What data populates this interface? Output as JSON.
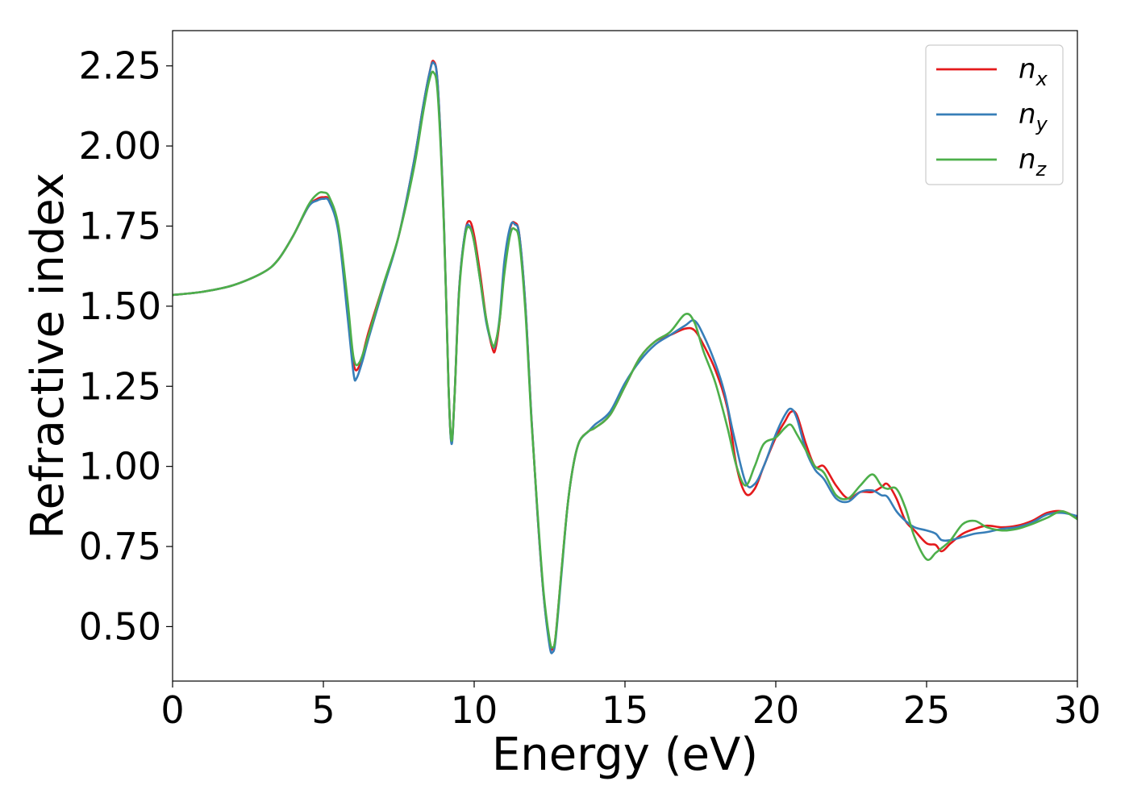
{
  "chart_data": {
    "type": "line",
    "title": "",
    "xlabel": "Energy (eV)",
    "ylabel": "Refractive index",
    "xlim": [
      0,
      30
    ],
    "ylim": [
      0.33,
      2.36
    ],
    "xticks": [
      0,
      5,
      10,
      15,
      20,
      25,
      30
    ],
    "xtick_labels": [
      "0",
      "5",
      "10",
      "15",
      "20",
      "25",
      "30"
    ],
    "yticks": [
      0.5,
      0.75,
      1.0,
      1.25,
      1.5,
      1.75,
      2.0,
      2.25
    ],
    "ytick_labels": [
      "0.50",
      "0.75",
      "1.00",
      "1.25",
      "1.50",
      "1.75",
      "2.00",
      "2.25"
    ],
    "grid": false,
    "legend_position": "top-right",
    "series": [
      {
        "name": "n_x",
        "base": "n",
        "sub": "x",
        "color": "#e41a1c",
        "x": [
          0,
          1,
          2,
          3,
          3.5,
          4,
          4.5,
          4.8,
          5.0,
          5.2,
          5.5,
          5.8,
          6.0,
          6.2,
          6.5,
          7.0,
          7.5,
          8.0,
          8.3,
          8.5,
          8.65,
          8.8,
          9.0,
          9.15,
          9.25,
          9.35,
          9.5,
          9.7,
          9.85,
          10.0,
          10.2,
          10.4,
          10.6,
          10.7,
          10.85,
          11.0,
          11.2,
          11.35,
          11.5,
          11.7,
          11.9,
          12.1,
          12.3,
          12.5,
          12.6,
          12.7,
          12.9,
          13.1,
          13.3,
          13.5,
          13.8,
          14.0,
          14.5,
          15.0,
          15.5,
          16.0,
          16.5,
          17.0,
          17.3,
          17.6,
          18.0,
          18.4,
          18.7,
          19.0,
          19.3,
          19.6,
          20.0,
          20.3,
          20.5,
          20.7,
          21.0,
          21.3,
          21.6,
          22.0,
          22.4,
          22.8,
          23.2,
          23.5,
          23.7,
          24.0,
          24.3,
          24.6,
          25.0,
          25.3,
          25.5,
          25.8,
          26.2,
          26.6,
          27.0,
          27.5,
          28.0,
          28.5,
          29.0,
          29.5,
          30.0
        ],
        "y": [
          1.535,
          1.545,
          1.565,
          1.605,
          1.645,
          1.72,
          1.81,
          1.835,
          1.84,
          1.83,
          1.74,
          1.5,
          1.32,
          1.315,
          1.42,
          1.57,
          1.72,
          1.95,
          2.12,
          2.22,
          2.265,
          2.18,
          1.75,
          1.25,
          1.075,
          1.22,
          1.55,
          1.73,
          1.765,
          1.72,
          1.6,
          1.46,
          1.37,
          1.365,
          1.46,
          1.63,
          1.745,
          1.76,
          1.72,
          1.5,
          1.15,
          0.85,
          0.6,
          0.45,
          0.43,
          0.47,
          0.68,
          0.88,
          1.01,
          1.08,
          1.11,
          1.12,
          1.16,
          1.25,
          1.34,
          1.39,
          1.41,
          1.43,
          1.425,
          1.38,
          1.3,
          1.18,
          1.0,
          0.915,
          0.93,
          1.0,
          1.09,
          1.14,
          1.17,
          1.16,
          1.07,
          1.0,
          1.0,
          0.94,
          0.9,
          0.92,
          0.92,
          0.935,
          0.945,
          0.9,
          0.83,
          0.8,
          0.76,
          0.755,
          0.735,
          0.76,
          0.79,
          0.805,
          0.815,
          0.81,
          0.815,
          0.83,
          0.855,
          0.86,
          0.84
        ]
      },
      {
        "name": "n_y",
        "base": "n",
        "sub": "y",
        "color": "#377eb8",
        "x": [
          0,
          1,
          2,
          3,
          3.5,
          4,
          4.5,
          4.8,
          5.0,
          5.2,
          5.5,
          5.8,
          6.0,
          6.1,
          6.3,
          6.5,
          7.0,
          7.5,
          8.0,
          8.3,
          8.5,
          8.65,
          8.8,
          9.0,
          9.15,
          9.25,
          9.35,
          9.5,
          9.7,
          9.85,
          10.0,
          10.2,
          10.4,
          10.6,
          10.7,
          10.85,
          11.0,
          11.2,
          11.35,
          11.5,
          11.7,
          11.9,
          12.1,
          12.3,
          12.5,
          12.6,
          12.7,
          12.9,
          13.1,
          13.3,
          13.5,
          13.8,
          14.0,
          14.5,
          15.0,
          15.5,
          16.0,
          16.5,
          17.0,
          17.3,
          17.6,
          18.0,
          18.3,
          18.6,
          19.0,
          19.3,
          19.6,
          20.0,
          20.3,
          20.5,
          20.7,
          21.0,
          21.3,
          21.6,
          22.0,
          22.4,
          22.8,
          23.2,
          23.5,
          23.7,
          24.0,
          24.3,
          24.6,
          25.0,
          25.3,
          25.5,
          25.8,
          26.2,
          26.6,
          27.0,
          27.5,
          28.0,
          28.5,
          29.0,
          29.5,
          30.0
        ],
        "y": [
          1.535,
          1.545,
          1.565,
          1.605,
          1.645,
          1.72,
          1.81,
          1.83,
          1.835,
          1.825,
          1.73,
          1.47,
          1.29,
          1.275,
          1.33,
          1.4,
          1.56,
          1.72,
          1.95,
          2.12,
          2.22,
          2.26,
          2.18,
          1.75,
          1.25,
          1.07,
          1.22,
          1.55,
          1.73,
          1.75,
          1.7,
          1.58,
          1.45,
          1.38,
          1.38,
          1.47,
          1.64,
          1.75,
          1.755,
          1.72,
          1.5,
          1.15,
          0.85,
          0.6,
          0.44,
          0.42,
          0.46,
          0.67,
          0.88,
          1.01,
          1.08,
          1.11,
          1.13,
          1.17,
          1.26,
          1.33,
          1.38,
          1.41,
          1.44,
          1.455,
          1.41,
          1.32,
          1.23,
          1.1,
          0.95,
          0.945,
          1.0,
          1.1,
          1.16,
          1.18,
          1.15,
          1.05,
          0.99,
          0.96,
          0.9,
          0.89,
          0.92,
          0.925,
          0.91,
          0.905,
          0.86,
          0.83,
          0.81,
          0.8,
          0.79,
          0.77,
          0.77,
          0.78,
          0.79,
          0.795,
          0.805,
          0.81,
          0.825,
          0.85,
          0.855,
          0.845
        ]
      },
      {
        "name": "n_z",
        "base": "n",
        "sub": "z",
        "color": "#4daf4a",
        "x": [
          0,
          1,
          2,
          3,
          3.5,
          4,
          4.5,
          4.8,
          5.0,
          5.2,
          5.5,
          5.8,
          6.0,
          6.2,
          6.5,
          7.0,
          7.5,
          8.0,
          8.3,
          8.5,
          8.65,
          8.8,
          9.0,
          9.15,
          9.25,
          9.35,
          9.5,
          9.7,
          9.85,
          10.0,
          10.2,
          10.4,
          10.6,
          10.7,
          10.85,
          11.0,
          11.2,
          11.35,
          11.5,
          11.7,
          11.9,
          12.1,
          12.3,
          12.5,
          12.6,
          12.7,
          12.9,
          13.1,
          13.3,
          13.5,
          13.8,
          14.0,
          14.5,
          15.0,
          15.5,
          16.0,
          16.5,
          17.0,
          17.3,
          17.6,
          18.0,
          18.4,
          18.7,
          19.0,
          19.3,
          19.6,
          20.0,
          20.3,
          20.5,
          20.7,
          21.0,
          21.3,
          21.6,
          22.0,
          22.4,
          22.8,
          23.2,
          23.5,
          23.7,
          24.0,
          24.3,
          24.6,
          25.0,
          25.3,
          25.5,
          25.8,
          26.2,
          26.6,
          27.0,
          27.5,
          28.0,
          28.5,
          29.0,
          29.5,
          30.0
        ],
        "y": [
          1.535,
          1.545,
          1.565,
          1.605,
          1.645,
          1.72,
          1.815,
          1.85,
          1.855,
          1.84,
          1.75,
          1.52,
          1.34,
          1.325,
          1.41,
          1.57,
          1.72,
          1.93,
          2.1,
          2.2,
          2.23,
          2.15,
          1.74,
          1.25,
          1.08,
          1.22,
          1.54,
          1.72,
          1.745,
          1.7,
          1.58,
          1.46,
          1.38,
          1.385,
          1.46,
          1.6,
          1.725,
          1.74,
          1.7,
          1.48,
          1.14,
          0.86,
          0.61,
          0.46,
          0.435,
          0.47,
          0.68,
          0.88,
          1.01,
          1.08,
          1.11,
          1.12,
          1.16,
          1.25,
          1.34,
          1.39,
          1.42,
          1.475,
          1.45,
          1.36,
          1.26,
          1.12,
          1.0,
          0.94,
          1.0,
          1.07,
          1.09,
          1.12,
          1.13,
          1.1,
          1.05,
          1.0,
          0.98,
          0.91,
          0.9,
          0.94,
          0.975,
          0.94,
          0.93,
          0.93,
          0.87,
          0.78,
          0.71,
          0.73,
          0.745,
          0.77,
          0.82,
          0.83,
          0.81,
          0.8,
          0.805,
          0.82,
          0.84,
          0.86,
          0.835
        ]
      }
    ]
  },
  "colors": {
    "n_x": "#e41a1c",
    "n_y": "#377eb8",
    "n_z": "#4daf4a"
  }
}
